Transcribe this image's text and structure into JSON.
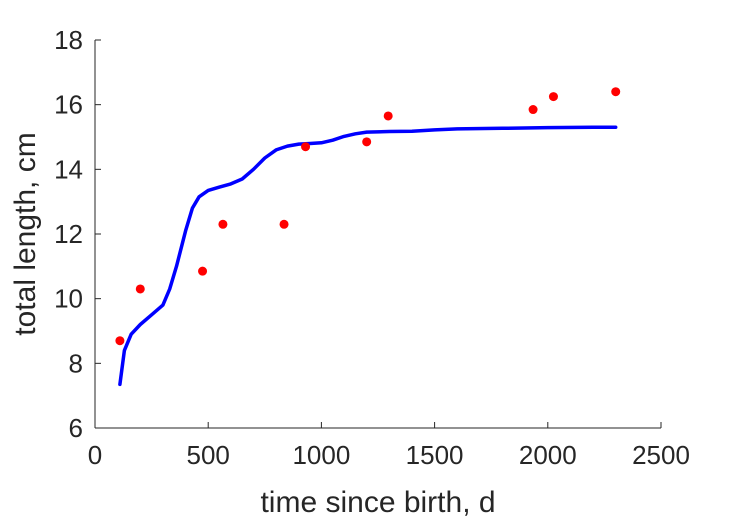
{
  "chart_data": {
    "type": "scatter",
    "xlabel": "time since birth, d",
    "ylabel": "total length, cm",
    "xlim": [
      0,
      2500
    ],
    "ylim": [
      6,
      18
    ],
    "x_ticks": [
      0,
      500,
      1000,
      1500,
      2000,
      2500
    ],
    "y_ticks": [
      6,
      8,
      10,
      12,
      14,
      16,
      18
    ],
    "grid": false,
    "series": [
      {
        "kind": "points",
        "color": "#ff0000",
        "x": [
          110,
          200,
          475,
          565,
          835,
          930,
          1200,
          1295,
          1935,
          2025,
          2300
        ],
        "y": [
          8.7,
          10.3,
          10.85,
          12.3,
          12.3,
          14.7,
          14.85,
          15.65,
          15.85,
          16.25,
          16.4
        ]
      },
      {
        "kind": "line",
        "color": "#0000ff",
        "x": [
          110,
          130,
          160,
          200,
          250,
          300,
          330,
          360,
          400,
          430,
          460,
          500,
          550,
          600,
          650,
          700,
          750,
          800,
          850,
          900,
          950,
          1000,
          1050,
          1100,
          1150,
          1200,
          1300,
          1400,
          1500,
          1600,
          1800,
          2000,
          2200,
          2300
        ],
        "y": [
          7.35,
          8.4,
          8.9,
          9.2,
          9.5,
          9.8,
          10.3,
          11.0,
          12.1,
          12.8,
          13.15,
          13.35,
          13.45,
          13.55,
          13.7,
          14.0,
          14.35,
          14.6,
          14.72,
          14.78,
          14.8,
          14.82,
          14.9,
          15.02,
          15.1,
          15.15,
          15.17,
          15.18,
          15.22,
          15.25,
          15.27,
          15.29,
          15.3,
          15.3
        ]
      }
    ]
  }
}
